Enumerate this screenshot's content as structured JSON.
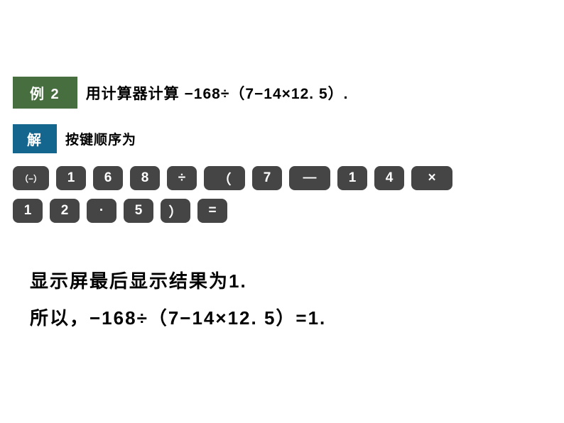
{
  "example": {
    "badge": "例 2",
    "text": "用计算器计算 −168÷（7−14×12. 5）."
  },
  "solution": {
    "badge": "解",
    "text": "按键顺序为"
  },
  "keys_row1": [
    {
      "label": "（−）",
      "cls": "key-small"
    },
    {
      "label": "1",
      "cls": ""
    },
    {
      "label": "6",
      "cls": ""
    },
    {
      "label": "8",
      "cls": ""
    },
    {
      "label": "÷",
      "cls": ""
    },
    {
      "label": "（",
      "cls": "key-wide"
    },
    {
      "label": "7",
      "cls": ""
    },
    {
      "label": "—",
      "cls": "key-wide"
    },
    {
      "label": "1",
      "cls": ""
    },
    {
      "label": "4",
      "cls": ""
    },
    {
      "label": "×",
      "cls": "key-wide"
    }
  ],
  "keys_row2": [
    {
      "label": "1",
      "cls": ""
    },
    {
      "label": "2",
      "cls": ""
    },
    {
      "label": "·",
      "cls": ""
    },
    {
      "label": "5",
      "cls": ""
    },
    {
      "label": "）",
      "cls": ""
    },
    {
      "label": "=",
      "cls": ""
    }
  ],
  "result": {
    "line1": "显示屏最后显示结果为1.",
    "line2": "所以，−168÷（7−14×12. 5）=1."
  },
  "colors": {
    "example_badge_bg": "#476e3f",
    "solution_badge_bg": "#15668e",
    "key_bg": "#454545",
    "key_fg": "#ffffff",
    "text": "#000000",
    "bg": "#ffffff"
  }
}
